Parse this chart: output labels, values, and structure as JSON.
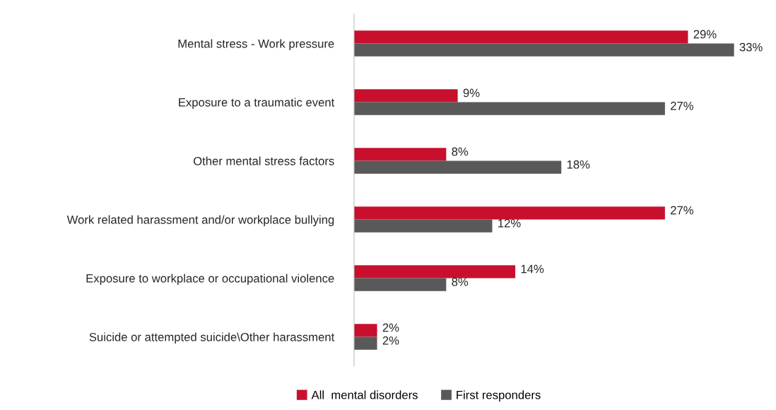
{
  "chart_data": {
    "type": "bar",
    "orientation": "horizontal",
    "categories": [
      "Mental stress - Work pressure",
      "Exposure to a traumatic event",
      "Other mental stress factors",
      "Work related harassment and/or workplace bullying",
      "Exposure to workplace or occupational violence",
      "Suicide or attempted suicide\\Other harassment"
    ],
    "series": [
      {
        "name": "All  mental disorders",
        "color": "#c8102e",
        "values": [
          29,
          9,
          8,
          27,
          14,
          2
        ],
        "value_labels": [
          "29%",
          "9%",
          "8%",
          "27%",
          "14%",
          "2%"
        ]
      },
      {
        "name": "First responders",
        "color": "#595959",
        "values": [
          33,
          27,
          18,
          12,
          8,
          2
        ],
        "value_labels": [
          "33%",
          "27%",
          "18%",
          "12%",
          "8%",
          "2%"
        ]
      }
    ],
    "tick_labels": "y",
    "grid": false,
    "legend": "bottom"
  }
}
